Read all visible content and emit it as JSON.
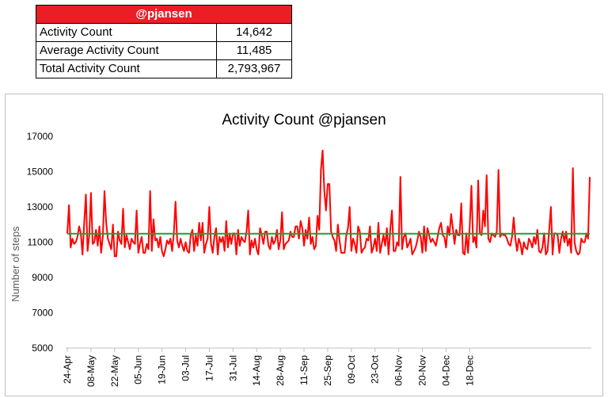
{
  "table": {
    "header": "@pjansen",
    "header_color": "#ea1f25",
    "rows": [
      {
        "label": "Activity Count",
        "value": "14,642"
      },
      {
        "label": "Average Activity Count",
        "value": "11,485"
      },
      {
        "label": "Total Activity Count",
        "value": "2,793,967"
      }
    ]
  },
  "chart_data": {
    "type": "line",
    "title": "Activity Count @pjansen",
    "xlabel": "",
    "ylabel": "Number of steps",
    "ylim": [
      5000,
      17000
    ],
    "yticks": [
      5000,
      7000,
      9000,
      11000,
      13000,
      15000,
      17000
    ],
    "grid": false,
    "legend": "none",
    "x_tick_labels": [
      "24-Apr",
      "08-May",
      "22-May",
      "05-Jun",
      "19-Jun",
      "03-Jul",
      "17-Jul",
      "31-Jul",
      "14-Aug",
      "28-Aug",
      "11-Sep",
      "25-Sep",
      "09-Oct",
      "23-Oct",
      "06-Nov",
      "20-Nov",
      "04-Dec",
      "18-Dec"
    ],
    "x_tick_day_index": [
      0,
      14,
      28,
      42,
      56,
      70,
      84,
      98,
      112,
      126,
      140,
      154,
      168,
      182,
      196,
      210,
      224,
      238
    ],
    "series": [
      {
        "name": "Activity Count",
        "color": "#ff0000",
        "values": [
          11500,
          13100,
          10700,
          11200,
          10900,
          11000,
          11300,
          11900,
          11500,
          10300,
          12100,
          13700,
          10500,
          11400,
          13800,
          10900,
          11000,
          11700,
          10800,
          11900,
          10400,
          11300,
          13900,
          12100,
          11200,
          10900,
          10600,
          12000,
          10200,
          10200,
          11600,
          11100,
          10900,
          12900,
          10700,
          11400,
          11000,
          10600,
          11200,
          11000,
          10900,
          12800,
          10400,
          10900,
          11300,
          10400,
          10400,
          10900,
          10600,
          13900,
          10500,
          12300,
          11100,
          11200,
          10700,
          11300,
          10500,
          10200,
          10600,
          11100,
          10900,
          11200,
          10500,
          11500,
          13300,
          11100,
          10700,
          11200,
          10800,
          10500,
          11000,
          10500,
          10400,
          11400,
          11700,
          10500,
          11400,
          10800,
          12100,
          11100,
          12100,
          10400,
          10900,
          11200,
          13000,
          10900,
          10400,
          11300,
          11800,
          10300,
          11300,
          11000,
          11300,
          10500,
          12200,
          10700,
          11500,
          10900,
          11500,
          11500,
          10300,
          11700,
          10800,
          11300,
          11100,
          11000,
          11600,
          12800,
          10300,
          11100,
          10700,
          11200,
          10600,
          10300,
          11800,
          11400,
          10900,
          11600,
          11600,
          10800,
          10600,
          11300,
          10900,
          11100,
          11700,
          10600,
          11100,
          12700,
          10600,
          10900,
          11000,
          11100,
          11600,
          11300,
          11300,
          11900,
          11900,
          11200,
          12200,
          11800,
          10800,
          11700,
          11200,
          12400,
          10900,
          11300,
          10600,
          10800,
          12500,
          11700,
          15100,
          16200,
          13900,
          12800,
          14300,
          14300,
          11600,
          11300,
          11100,
          10500,
          12000,
          11100,
          10400,
          10400,
          10400,
          11400,
          11800,
          13000,
          10500,
          11200,
          10900,
          10400,
          11900,
          11600,
          10400,
          10600,
          10700,
          11200,
          11100,
          11900,
          10400,
          10700,
          11200,
          10500,
          12100,
          10400,
          10900,
          11400,
          10800,
          11800,
          10300,
          11700,
          12800,
          10500,
          10500,
          11000,
          10800,
          14700,
          10600,
          11300,
          11500,
          10700,
          10900,
          11200,
          10300,
          10500,
          10700,
          11100,
          11600,
          11300,
          10400,
          11900,
          10500,
          11800,
          11400,
          11000,
          11200,
          11000,
          10800,
          11300,
          11800,
          12100,
          11400,
          11300,
          10700,
          11900,
          11400,
          12600,
          11800,
          10900,
          11700,
          11400,
          11400,
          13200,
          10400,
          10300,
          11500,
          10400,
          11900,
          14200,
          11000,
          11300,
          10700,
          14500,
          11500,
          11400,
          12800,
          11900,
          14800,
          11200,
          11000,
          11500,
          11400,
          11300,
          11600,
          15100,
          11300,
          11500,
          11400,
          11400,
          11200,
          10900,
          10800,
          11300,
          12400,
          11200,
          10500,
          11200,
          10900,
          10300,
          11000,
          10700,
          10600,
          11200,
          11000,
          10700,
          11300,
          10900,
          11700,
          10500,
          10400,
          10700,
          11500,
          10300,
          10500,
          11700,
          13000,
          10300,
          11500,
          11500,
          11400,
          10400,
          11200,
          11600,
          11000,
          11600,
          10800,
          11200,
          10400,
          15200,
          11000,
          10500,
          10300,
          10400,
          11200,
          11000,
          11000,
          11500,
          11200,
          14700
        ]
      },
      {
        "name": "Average Activity Count",
        "color": "#1f9e3a",
        "values": [
          11485,
          11485
        ]
      }
    ]
  }
}
